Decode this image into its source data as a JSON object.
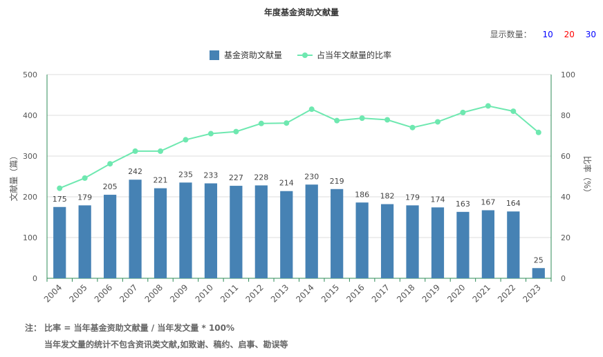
{
  "chart_data": {
    "type": "bar",
    "title": "年度基金资助文献量",
    "categories": [
      "2004",
      "2005",
      "2006",
      "2007",
      "2008",
      "2009",
      "2010",
      "2011",
      "2012",
      "2013",
      "2014",
      "2015",
      "2016",
      "2017",
      "2018",
      "2019",
      "2020",
      "2021",
      "2022",
      "2023"
    ],
    "series": [
      {
        "name": "基金资助文献量",
        "type": "bar",
        "axis": "left",
        "color": "#4682b4",
        "values": [
          175,
          179,
          205,
          242,
          221,
          235,
          233,
          227,
          228,
          214,
          230,
          219,
          186,
          182,
          179,
          174,
          163,
          167,
          164,
          25
        ]
      },
      {
        "name": "占当年文献量的比率",
        "type": "line",
        "axis": "right",
        "color": "#6ee8b0",
        "values": [
          44.2,
          49.2,
          56.2,
          62.4,
          62.4,
          68.0,
          71.0,
          72.0,
          76.0,
          76.2,
          83.0,
          77.4,
          78.6,
          77.8,
          74.0,
          76.8,
          81.4,
          84.6,
          82.0,
          71.6
        ]
      }
    ],
    "ylabel": "文献量（篇）",
    "y2label": "比率（%）",
    "ylim": [
      0,
      500
    ],
    "y2lim": [
      0,
      100
    ],
    "yticks": [
      0,
      100,
      200,
      300,
      400,
      500
    ],
    "y2ticks": [
      0,
      20,
      40,
      60,
      80,
      100
    ],
    "grid": true,
    "legend_position": "top-center"
  },
  "display_count": {
    "label": "显示数量：",
    "options": [
      "10",
      "20",
      "30"
    ],
    "colors": [
      "#0000ff",
      "#ff0000",
      "#0000ff"
    ]
  },
  "notes": {
    "line1": "注：  比率 = 当年基金资助文献量 / 当年发文量 * 100%",
    "line2": "当年发文量的统计不包含资讯类文献,如致谢、稿约、启事、勘误等"
  }
}
